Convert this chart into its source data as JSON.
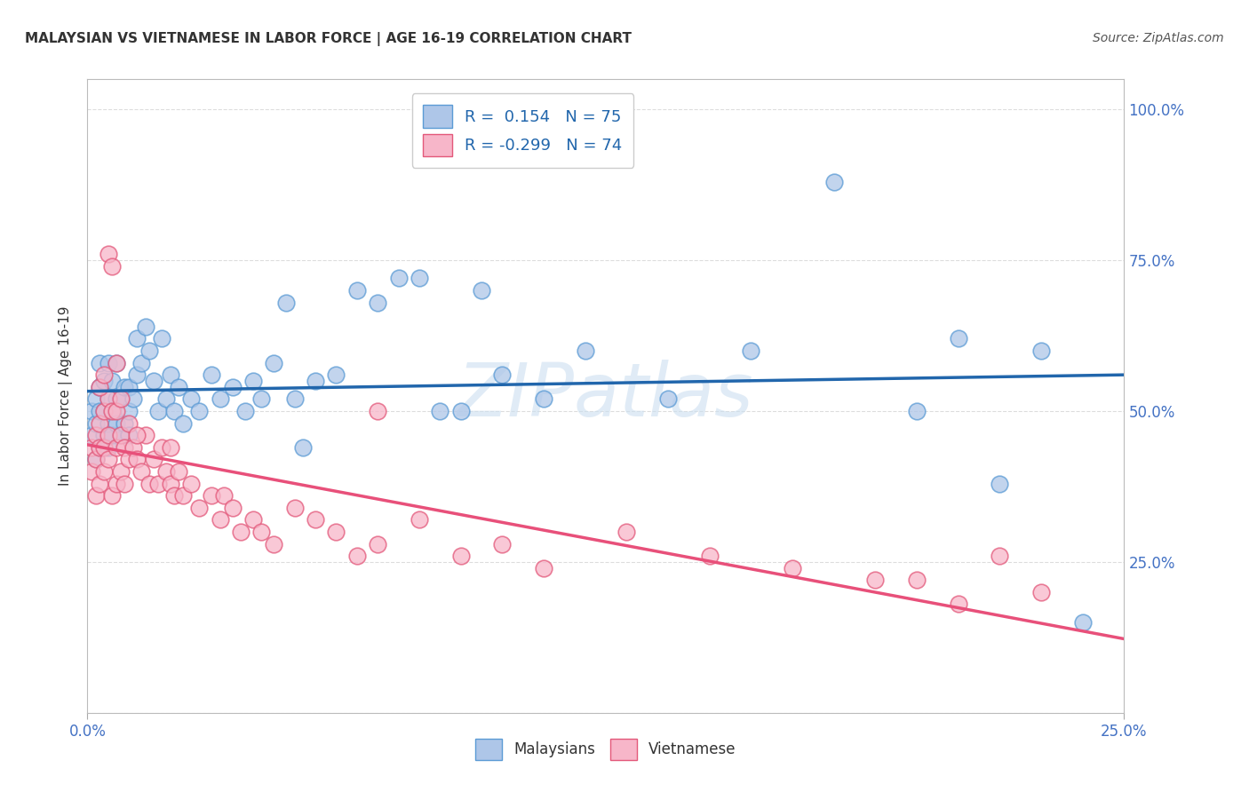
{
  "title": "MALAYSIAN VS VIETNAMESE IN LABOR FORCE | AGE 16-19 CORRELATION CHART",
  "source_text": "Source: ZipAtlas.com",
  "ylabel": "In Labor Force | Age 16-19",
  "xlim": [
    0.0,
    0.25
  ],
  "ylim": [
    0.0,
    1.05
  ],
  "yticks": [
    0.0,
    0.25,
    0.5,
    0.75,
    1.0
  ],
  "ytick_labels": [
    "",
    "25.0%",
    "50.0%",
    "75.0%",
    "100.0%"
  ],
  "xtick_labels": [
    "0.0%",
    "25.0%"
  ],
  "blue_R": 0.154,
  "blue_N": 75,
  "pink_R": -0.299,
  "pink_N": 74,
  "blue_color": "#aec6e8",
  "pink_color": "#f7b6c9",
  "blue_edge_color": "#5b9bd5",
  "pink_edge_color": "#e3587a",
  "blue_line_color": "#2166ac",
  "pink_line_color": "#e8507a",
  "watermark": "ZIPatlas",
  "legend_label_blue": "Malaysians",
  "legend_label_pink": "Vietnamese",
  "background_color": "#ffffff",
  "grid_color": "#dddddd",
  "blue_scatter_x": [
    0.001,
    0.001,
    0.002,
    0.002,
    0.002,
    0.003,
    0.003,
    0.003,
    0.003,
    0.004,
    0.004,
    0.004,
    0.005,
    0.005,
    0.005,
    0.005,
    0.006,
    0.006,
    0.006,
    0.007,
    0.007,
    0.007,
    0.008,
    0.008,
    0.009,
    0.009,
    0.01,
    0.01,
    0.01,
    0.011,
    0.012,
    0.012,
    0.013,
    0.014,
    0.015,
    0.016,
    0.017,
    0.018,
    0.019,
    0.02,
    0.021,
    0.022,
    0.023,
    0.025,
    0.027,
    0.03,
    0.032,
    0.035,
    0.038,
    0.04,
    0.042,
    0.045,
    0.05,
    0.055,
    0.06,
    0.065,
    0.07,
    0.08,
    0.09,
    0.1,
    0.11,
    0.12,
    0.14,
    0.16,
    0.18,
    0.2,
    0.21,
    0.22,
    0.23,
    0.24,
    0.048,
    0.052,
    0.075,
    0.085,
    0.095
  ],
  "blue_scatter_y": [
    0.46,
    0.5,
    0.42,
    0.48,
    0.52,
    0.44,
    0.5,
    0.54,
    0.58,
    0.46,
    0.5,
    0.55,
    0.44,
    0.48,
    0.52,
    0.58,
    0.46,
    0.5,
    0.55,
    0.48,
    0.52,
    0.58,
    0.46,
    0.52,
    0.48,
    0.54,
    0.46,
    0.5,
    0.54,
    0.52,
    0.56,
    0.62,
    0.58,
    0.64,
    0.6,
    0.55,
    0.5,
    0.62,
    0.52,
    0.56,
    0.5,
    0.54,
    0.48,
    0.52,
    0.5,
    0.56,
    0.52,
    0.54,
    0.5,
    0.55,
    0.52,
    0.58,
    0.52,
    0.55,
    0.56,
    0.7,
    0.68,
    0.72,
    0.5,
    0.56,
    0.52,
    0.6,
    0.52,
    0.6,
    0.88,
    0.5,
    0.62,
    0.38,
    0.6,
    0.15,
    0.68,
    0.44,
    0.72,
    0.5,
    0.7
  ],
  "pink_scatter_x": [
    0.001,
    0.001,
    0.002,
    0.002,
    0.002,
    0.003,
    0.003,
    0.003,
    0.004,
    0.004,
    0.004,
    0.005,
    0.005,
    0.005,
    0.006,
    0.006,
    0.007,
    0.007,
    0.007,
    0.008,
    0.008,
    0.009,
    0.009,
    0.01,
    0.01,
    0.011,
    0.012,
    0.013,
    0.014,
    0.015,
    0.016,
    0.017,
    0.018,
    0.019,
    0.02,
    0.021,
    0.022,
    0.023,
    0.025,
    0.027,
    0.03,
    0.032,
    0.033,
    0.035,
    0.037,
    0.04,
    0.042,
    0.045,
    0.05,
    0.055,
    0.06,
    0.065,
    0.07,
    0.08,
    0.09,
    0.1,
    0.11,
    0.13,
    0.15,
    0.17,
    0.19,
    0.2,
    0.21,
    0.22,
    0.23,
    0.003,
    0.004,
    0.005,
    0.006,
    0.007,
    0.008,
    0.012,
    0.02,
    0.07
  ],
  "pink_scatter_y": [
    0.4,
    0.44,
    0.36,
    0.42,
    0.46,
    0.38,
    0.44,
    0.48,
    0.4,
    0.44,
    0.5,
    0.42,
    0.46,
    0.52,
    0.36,
    0.5,
    0.38,
    0.44,
    0.5,
    0.4,
    0.46,
    0.38,
    0.44,
    0.42,
    0.48,
    0.44,
    0.42,
    0.4,
    0.46,
    0.38,
    0.42,
    0.38,
    0.44,
    0.4,
    0.38,
    0.36,
    0.4,
    0.36,
    0.38,
    0.34,
    0.36,
    0.32,
    0.36,
    0.34,
    0.3,
    0.32,
    0.3,
    0.28,
    0.34,
    0.32,
    0.3,
    0.26,
    0.28,
    0.32,
    0.26,
    0.28,
    0.24,
    0.3,
    0.26,
    0.24,
    0.22,
    0.22,
    0.18,
    0.26,
    0.2,
    0.54,
    0.56,
    0.76,
    0.74,
    0.58,
    0.52,
    0.46,
    0.44,
    0.5
  ]
}
